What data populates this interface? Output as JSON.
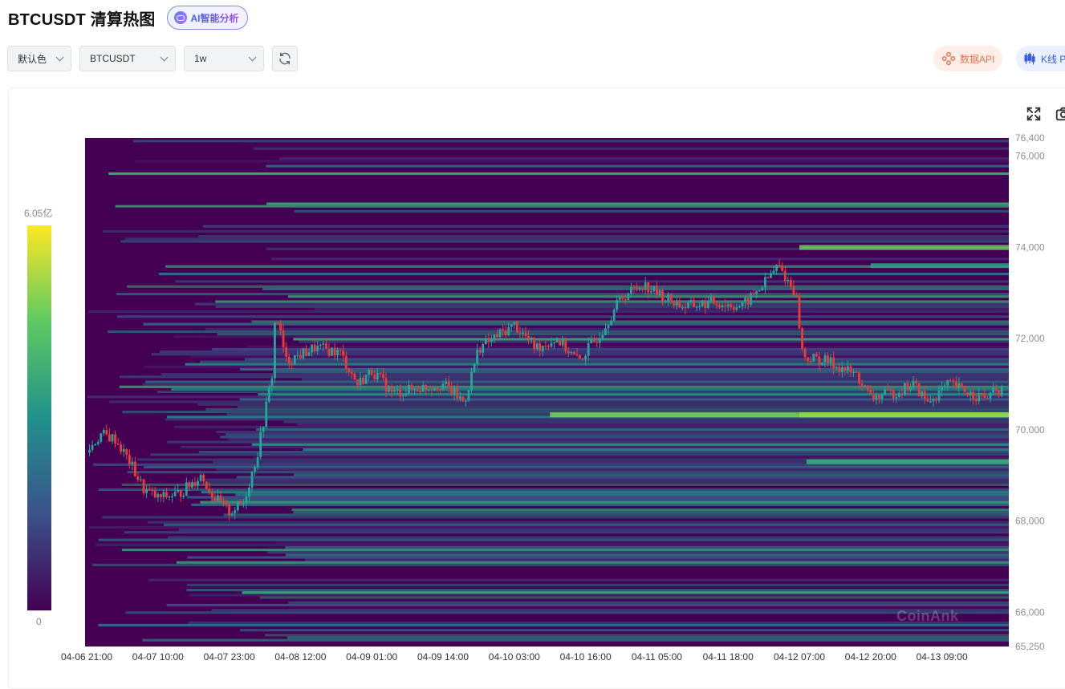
{
  "header": {
    "title": "BTCUSDT 清算热图",
    "ai_label": "AI智能分析"
  },
  "toolbar": {
    "color_select": "默认色",
    "symbol_select": "BTCUSDT",
    "range_select": "1w"
  },
  "actions": {
    "api_label": "数据API",
    "kline_label": "K线 P"
  },
  "legend": {
    "max_label": "6.05亿",
    "min_label": "0"
  },
  "icons": {
    "fullscreen": "fullscreen-icon",
    "screenshot": "camera-icon",
    "refresh": "refresh-icon"
  },
  "watermark": "CoinAnk",
  "colors": {
    "up": "#26a69a",
    "down": "#ef3b36",
    "heat_low": "#440154",
    "heat_high": "#fde725"
  },
  "chart_data": {
    "type": "heatmap",
    "title": "",
    "xlabel": "",
    "ylabel": "",
    "ylim": [
      65250,
      76400
    ],
    "x_ticks": [
      "04-06 21:00",
      "04-07 10:00",
      "04-07 23:00",
      "04-08 12:00",
      "04-09 01:00",
      "04-09 14:00",
      "04-10 03:00",
      "04-10 16:00",
      "04-11 05:00",
      "04-11 18:00",
      "04-12 07:00",
      "04-12 20:00",
      "04-13 09:00"
    ],
    "y_ticks": [
      76400,
      76000,
      74000,
      72000,
      70000,
      68000,
      66000,
      65250
    ],
    "y_tick_labels": [
      "76,400",
      "76,000",
      "74,000",
      "72,000",
      "70,000",
      "68,000",
      "66,000",
      "65,250"
    ],
    "price_path": [
      {
        "t": 0,
        "p": 69500
      },
      {
        "t": 0.2,
        "p": 69900
      },
      {
        "t": 0.4,
        "p": 69800
      },
      {
        "t": 0.6,
        "p": 69300
      },
      {
        "t": 0.8,
        "p": 68700
      },
      {
        "t": 1.0,
        "p": 68500
      },
      {
        "t": 1.3,
        "p": 68600
      },
      {
        "t": 1.6,
        "p": 69000
      },
      {
        "t": 1.8,
        "p": 68500
      },
      {
        "t": 2.0,
        "p": 68200
      },
      {
        "t": 2.2,
        "p": 68400
      },
      {
        "t": 2.4,
        "p": 69500
      },
      {
        "t": 2.6,
        "p": 71200
      },
      {
        "t": 2.65,
        "p": 72600
      },
      {
        "t": 2.8,
        "p": 71500
      },
      {
        "t": 3.2,
        "p": 71800
      },
      {
        "t": 3.55,
        "p": 71700
      },
      {
        "t": 3.8,
        "p": 71000
      },
      {
        "t": 4.0,
        "p": 71300
      },
      {
        "t": 4.3,
        "p": 70800
      },
      {
        "t": 4.6,
        "p": 70900
      },
      {
        "t": 5.0,
        "p": 71000
      },
      {
        "t": 5.3,
        "p": 70600
      },
      {
        "t": 5.5,
        "p": 71800
      },
      {
        "t": 5.8,
        "p": 72100
      },
      {
        "t": 6.0,
        "p": 72300
      },
      {
        "t": 6.3,
        "p": 71800
      },
      {
        "t": 6.6,
        "p": 72000
      },
      {
        "t": 6.9,
        "p": 71500
      },
      {
        "t": 7.2,
        "p": 72100
      },
      {
        "t": 7.5,
        "p": 72900
      },
      {
        "t": 7.8,
        "p": 73200
      },
      {
        "t": 8.1,
        "p": 72900
      },
      {
        "t": 8.4,
        "p": 72700
      },
      {
        "t": 8.8,
        "p": 72800
      },
      {
        "t": 9.2,
        "p": 72700
      },
      {
        "t": 9.5,
        "p": 73200
      },
      {
        "t": 9.7,
        "p": 73600
      },
      {
        "t": 9.95,
        "p": 73000
      },
      {
        "t": 10.05,
        "p": 71600
      },
      {
        "t": 10.4,
        "p": 71500
      },
      {
        "t": 10.8,
        "p": 71200
      },
      {
        "t": 11.0,
        "p": 70700
      },
      {
        "t": 11.3,
        "p": 70800
      },
      {
        "t": 11.6,
        "p": 71000
      },
      {
        "t": 11.8,
        "p": 70600
      },
      {
        "t": 12.1,
        "p": 71000
      },
      {
        "t": 12.4,
        "p": 70800
      },
      {
        "t": 12.6,
        "p": 70700
      },
      {
        "t": 12.85,
        "p": 70900
      }
    ]
  }
}
